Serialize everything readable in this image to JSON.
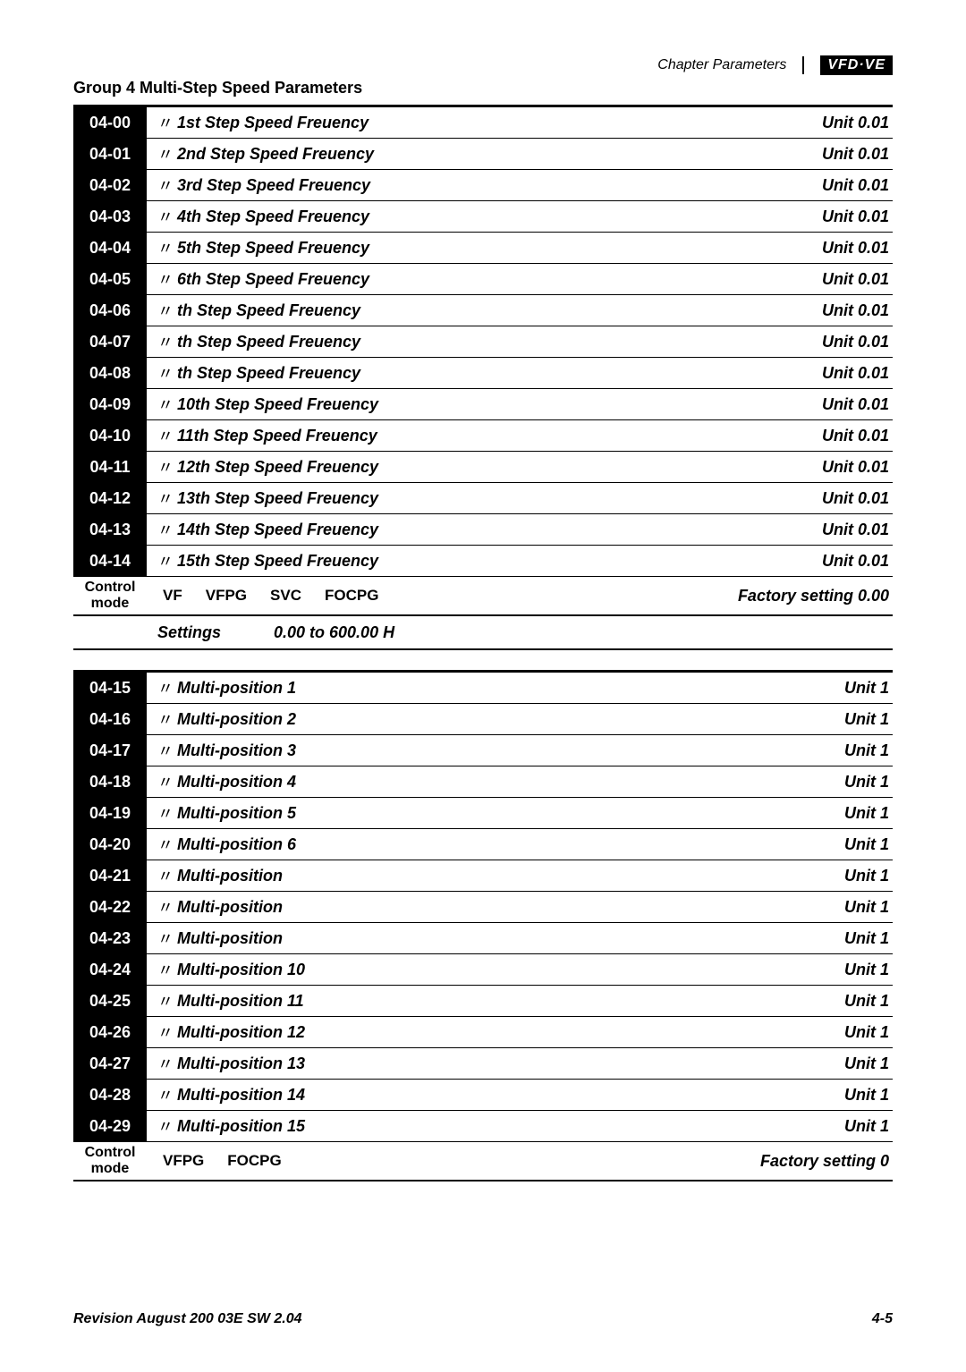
{
  "header": {
    "chapter": "Chapter Parameters",
    "logo": "VFD·VE"
  },
  "group_title": "Group 4  Multi-Step Speed Parameters",
  "marker_glyph": "〃",
  "section1": {
    "rows": [
      {
        "code": "04-00",
        "label": "1st Step Speed Freuency",
        "unit": "Unit 0.01"
      },
      {
        "code": "04-01",
        "label": "2nd Step Speed Freuency",
        "unit": "Unit 0.01"
      },
      {
        "code": "04-02",
        "label": "3rd Step Speed Freuency",
        "unit": "Unit 0.01"
      },
      {
        "code": "04-03",
        "label": "4th Step Speed Freuency",
        "unit": "Unit 0.01"
      },
      {
        "code": "04-04",
        "label": "5th Step Speed Freuency",
        "unit": "Unit 0.01"
      },
      {
        "code": "04-05",
        "label": "6th Step Speed Freuency",
        "unit": "Unit 0.01"
      },
      {
        "code": "04-06",
        "label": "th Step Speed Freuency",
        "unit": "Unit 0.01"
      },
      {
        "code": "04-07",
        "label": "th Step Speed Freuency",
        "unit": "Unit 0.01"
      },
      {
        "code": "04-08",
        "label": "th Step Speed Freuency",
        "unit": "Unit 0.01"
      },
      {
        "code": "04-09",
        "label": "10th Step Speed Freuency",
        "unit": "Unit 0.01"
      },
      {
        "code": "04-10",
        "label": "11th Step Speed Freuency",
        "unit": "Unit 0.01"
      },
      {
        "code": "04-11",
        "label": "12th Step Speed Freuency",
        "unit": "Unit 0.01"
      },
      {
        "code": "04-12",
        "label": "13th Step Speed Freuency",
        "unit": "Unit 0.01"
      },
      {
        "code": "04-13",
        "label": "14th Step Speed Freuency",
        "unit": "Unit 0.01"
      },
      {
        "code": "04-14",
        "label": "15th Step Speed Freuency",
        "unit": "Unit 0.01"
      }
    ],
    "control": {
      "label_line1": "Control",
      "label_line2": "mode",
      "modes": [
        "VF",
        "VFPG",
        "SVC",
        "FOCPG"
      ],
      "factory": "Factory setting  0.00"
    },
    "settings": {
      "label": "Settings",
      "value": "0.00 to 600.00 H"
    }
  },
  "section2": {
    "rows": [
      {
        "code": "04-15",
        "label": "Multi-position 1",
        "unit": "Unit 1"
      },
      {
        "code": "04-16",
        "label": "Multi-position 2",
        "unit": "Unit 1"
      },
      {
        "code": "04-17",
        "label": "Multi-position 3",
        "unit": "Unit 1"
      },
      {
        "code": "04-18",
        "label": "Multi-position 4",
        "unit": "Unit 1"
      },
      {
        "code": "04-19",
        "label": "Multi-position 5",
        "unit": "Unit 1"
      },
      {
        "code": "04-20",
        "label": "Multi-position 6",
        "unit": "Unit 1"
      },
      {
        "code": "04-21",
        "label": "Multi-position",
        "unit": "Unit 1"
      },
      {
        "code": "04-22",
        "label": "Multi-position",
        "unit": "Unit 1"
      },
      {
        "code": "04-23",
        "label": "Multi-position",
        "unit": "Unit 1"
      },
      {
        "code": "04-24",
        "label": "Multi-position 10",
        "unit": "Unit 1"
      },
      {
        "code": "04-25",
        "label": "Multi-position 11",
        "unit": "Unit 1"
      },
      {
        "code": "04-26",
        "label": "Multi-position 12",
        "unit": "Unit 1"
      },
      {
        "code": "04-27",
        "label": "Multi-position 13",
        "unit": "Unit 1"
      },
      {
        "code": "04-28",
        "label": "Multi-position 14",
        "unit": "Unit 1"
      },
      {
        "code": "04-29",
        "label": "Multi-position 15",
        "unit": "Unit 1"
      }
    ],
    "control": {
      "label_line1": "Control",
      "label_line2": "mode",
      "modes": [
        "VFPG",
        "FOCPG"
      ],
      "factory": "Factory setting  0"
    }
  },
  "footer": {
    "left": "Revision August 200 03E SW 2.04",
    "right": "4-5"
  }
}
